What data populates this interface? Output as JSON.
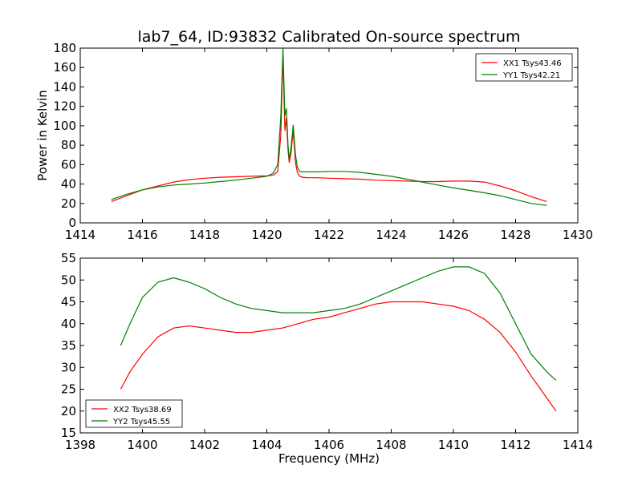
{
  "chart_data": [
    {
      "type": "line",
      "title": "lab7_64, ID:93832 Calibrated On-source spectrum",
      "xlabel": "",
      "ylabel": "Power in Kelvin",
      "xlim": [
        1414,
        1430
      ],
      "ylim": [
        0,
        180
      ],
      "xticks": [
        1414,
        1416,
        1418,
        1420,
        1422,
        1424,
        1426,
        1428,
        1430
      ],
      "yticks": [
        0,
        20,
        40,
        60,
        80,
        100,
        120,
        140,
        160,
        180
      ],
      "legend_position": "top-right",
      "series": [
        {
          "name": "XX1 Tsys43.46",
          "color": "#ff0000",
          "x": [
            1415.0,
            1415.5,
            1416.0,
            1416.5,
            1417.0,
            1417.5,
            1418.0,
            1418.5,
            1419.0,
            1419.5,
            1420.0,
            1420.2,
            1420.35,
            1420.45,
            1420.52,
            1420.58,
            1420.63,
            1420.68,
            1420.72,
            1420.78,
            1420.85,
            1420.92,
            1420.98,
            1421.05,
            1421.15,
            1421.3,
            1421.6,
            1422.0,
            1422.5,
            1423.0,
            1423.5,
            1424.0,
            1424.5,
            1425.0,
            1425.5,
            1426.0,
            1426.5,
            1427.0,
            1427.5,
            1428.0,
            1428.5,
            1429.0
          ],
          "y": [
            22,
            28,
            34,
            38,
            42,
            44.5,
            46,
            47,
            47.5,
            48,
            48.5,
            49,
            53,
            90,
            172,
            95,
            108,
            75,
            62,
            72,
            95,
            62,
            52,
            48,
            47,
            46.5,
            46.5,
            46,
            45.5,
            45,
            44,
            43.5,
            43,
            42.5,
            42.5,
            43,
            43,
            42,
            38,
            33,
            27,
            22
          ]
        },
        {
          "name": "YY1 Tsys42.21",
          "color": "#008000",
          "x": [
            1415.0,
            1415.5,
            1416.0,
            1416.5,
            1417.0,
            1417.5,
            1418.0,
            1418.5,
            1419.0,
            1419.5,
            1420.0,
            1420.2,
            1420.35,
            1420.45,
            1420.52,
            1420.58,
            1420.63,
            1420.68,
            1420.72,
            1420.78,
            1420.85,
            1420.92,
            1420.98,
            1421.05,
            1421.15,
            1421.3,
            1421.6,
            1422.0,
            1422.5,
            1423.0,
            1423.5,
            1424.0,
            1424.5,
            1425.0,
            1425.5,
            1426.0,
            1426.5,
            1427.0,
            1427.5,
            1428.0,
            1428.5,
            1429.0
          ],
          "y": [
            24,
            29.5,
            34,
            37,
            39,
            40,
            41,
            42.5,
            44,
            46,
            48,
            51,
            60,
            110,
            180,
            110,
            118,
            80,
            65,
            78,
            101,
            70,
            58,
            53,
            52.5,
            52.5,
            52.5,
            53,
            53,
            52,
            50,
            48,
            45,
            42,
            39,
            36,
            33.5,
            31,
            28,
            24,
            20,
            18
          ]
        }
      ]
    },
    {
      "type": "line",
      "title": "",
      "xlabel": "Frequency (MHz)",
      "ylabel": "",
      "xlim": [
        1398,
        1414
      ],
      "ylim": [
        15,
        55
      ],
      "xticks": [
        1398,
        1400,
        1402,
        1404,
        1406,
        1408,
        1410,
        1412,
        1414
      ],
      "yticks": [
        15,
        20,
        25,
        30,
        35,
        40,
        45,
        50,
        55
      ],
      "legend_position": "bottom-left",
      "series": [
        {
          "name": "XX2 Tsys38.69",
          "color": "#ff0000",
          "x": [
            1399.3,
            1399.6,
            1400.0,
            1400.5,
            1401.0,
            1401.5,
            1402.0,
            1402.5,
            1403.0,
            1403.5,
            1404.0,
            1404.5,
            1405.0,
            1405.5,
            1406.0,
            1406.5,
            1407.0,
            1407.5,
            1408.0,
            1408.5,
            1409.0,
            1409.5,
            1410.0,
            1410.5,
            1411.0,
            1411.5,
            1412.0,
            1412.5,
            1413.0,
            1413.3
          ],
          "y": [
            25,
            29,
            33,
            37,
            39,
            39.5,
            39,
            38.5,
            38,
            38,
            38.5,
            39,
            40,
            41,
            41.5,
            42.5,
            43.5,
            44.5,
            45,
            45,
            45,
            44.5,
            44,
            43,
            41,
            38,
            33.5,
            28,
            23,
            20
          ]
        },
        {
          "name": "YY2 Tsys45.55",
          "color": "#008000",
          "x": [
            1399.3,
            1399.6,
            1400.0,
            1400.5,
            1401.0,
            1401.5,
            1402.0,
            1402.5,
            1403.0,
            1403.5,
            1404.0,
            1404.5,
            1405.0,
            1405.5,
            1406.0,
            1406.5,
            1407.0,
            1407.5,
            1408.0,
            1408.5,
            1409.0,
            1409.5,
            1410.0,
            1410.5,
            1411.0,
            1411.5,
            1412.0,
            1412.5,
            1413.0,
            1413.3
          ],
          "y": [
            35,
            40,
            46,
            49.5,
            50.5,
            49.5,
            48,
            46,
            44.5,
            43.5,
            43,
            42.5,
            42.5,
            42.5,
            43,
            43.5,
            44.5,
            46,
            47.5,
            49,
            50.5,
            52,
            53,
            53,
            51.5,
            47,
            40,
            33,
            29,
            27
          ]
        }
      ]
    }
  ]
}
